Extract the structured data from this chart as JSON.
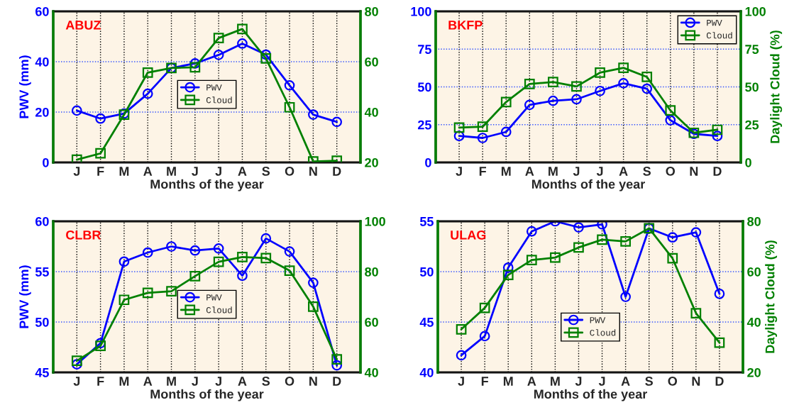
{
  "chart_data": [
    {
      "type": "line",
      "annotations": [
        "ABUZ"
      ],
      "xlabel": "Months of the year",
      "ylabel": "PWV (mm)",
      "categories": [
        "J",
        "F",
        "M",
        "A",
        "M",
        "J",
        "J",
        "A",
        "S",
        "O",
        "N",
        "D"
      ],
      "ylim": [
        0,
        60
      ],
      "yticks": [
        0,
        20,
        40,
        60
      ],
      "y2lim": [
        20,
        80
      ],
      "y2ticks": [
        20,
        40,
        60,
        80
      ],
      "grid": true,
      "legend": "center",
      "series": [
        {
          "name": "PWV",
          "color": "#0000ff",
          "marker": "circle",
          "values": [
            20.6,
            17.4,
            19.4,
            27.3,
            37.5,
            39.3,
            42.7,
            47.2,
            42.8,
            30.6,
            19.0,
            16.1
          ]
        },
        {
          "name": "Cloud",
          "color": "#008000",
          "marker": "square",
          "axis": "y2",
          "values": [
            21.1,
            23.6,
            39.0,
            55.7,
            57.5,
            57.8,
            69.4,
            73.0,
            61.3,
            41.9,
            20.4,
            20.7
          ]
        }
      ]
    },
    {
      "type": "line",
      "annotations": [
        "BKFP"
      ],
      "xlabel": "Months of the year",
      "y2label": "Daylight Cloud (%)",
      "categories": [
        "J",
        "F",
        "M",
        "A",
        "M",
        "J",
        "J",
        "A",
        "S",
        "O",
        "N",
        "D"
      ],
      "ylim": [
        0,
        100
      ],
      "yticks": [
        0,
        25,
        50,
        75,
        100
      ],
      "y2lim": [
        0,
        100
      ],
      "y2ticks": [
        0,
        25,
        50,
        75,
        100
      ],
      "grid": true,
      "legend": "upper right",
      "series": [
        {
          "name": "PWV",
          "color": "#0000ff",
          "marker": "circle",
          "values": [
            17.5,
            16.2,
            20.2,
            38.1,
            40.8,
            41.8,
            47.3,
            52.4,
            48.8,
            27.9,
            18.9,
            17.5
          ]
        },
        {
          "name": "Cloud",
          "color": "#008000",
          "marker": "square",
          "axis": "y2",
          "values": [
            23.1,
            23.6,
            40.0,
            51.9,
            53.2,
            50.3,
            59.4,
            62.6,
            56.6,
            34.4,
            19.6,
            21.6
          ]
        }
      ]
    },
    {
      "type": "line",
      "annotations": [
        "CLBR"
      ],
      "xlabel": "Months of the year",
      "ylabel": "PWV (mm)",
      "categories": [
        "J",
        "F",
        "M",
        "A",
        "M",
        "J",
        "J",
        "A",
        "S",
        "O",
        "N",
        "D"
      ],
      "ylim": [
        45,
        60
      ],
      "yticks": [
        45,
        50,
        55,
        60
      ],
      "y2lim": [
        40,
        100
      ],
      "y2ticks": [
        40,
        60,
        80,
        100
      ],
      "grid": true,
      "legend": "center",
      "series": [
        {
          "name": "PWV",
          "color": "#0000ff",
          "marker": "circle",
          "values": [
            45.8,
            47.9,
            56.0,
            56.9,
            57.5,
            57.1,
            57.3,
            54.6,
            58.3,
            57.0,
            53.9,
            45.7
          ]
        },
        {
          "name": "Cloud",
          "color": "#008000",
          "marker": "square",
          "axis": "y2",
          "values": [
            44.6,
            50.5,
            68.8,
            71.6,
            72.2,
            78.2,
            83.9,
            85.8,
            85.4,
            80.4,
            66.1,
            45.2
          ]
        }
      ]
    },
    {
      "type": "line",
      "annotations": [
        "ULAG"
      ],
      "xlabel": "Months of the year",
      "y2label": "Daylight Cloud (%)",
      "categories": [
        "J",
        "F",
        "M",
        "A",
        "M",
        "J",
        "J",
        "A",
        "S",
        "O",
        "N",
        "D"
      ],
      "ylim": [
        40,
        55
      ],
      "yticks": [
        40,
        45,
        50,
        55
      ],
      "y2lim": [
        20,
        80
      ],
      "y2ticks": [
        20,
        40,
        60,
        80
      ],
      "grid": true,
      "legend": "lower center",
      "series": [
        {
          "name": "PWV",
          "color": "#0000ff",
          "marker": "circle",
          "values": [
            41.7,
            43.6,
            50.4,
            54.0,
            55.0,
            54.4,
            54.7,
            47.5,
            54.3,
            53.4,
            53.9,
            47.8
          ]
        },
        {
          "name": "Cloud",
          "color": "#008000",
          "marker": "square",
          "axis": "y2",
          "values": [
            37.1,
            45.6,
            58.7,
            64.6,
            65.6,
            69.6,
            72.7,
            72.0,
            77.2,
            65.3,
            43.5,
            31.8
          ]
        }
      ]
    }
  ]
}
